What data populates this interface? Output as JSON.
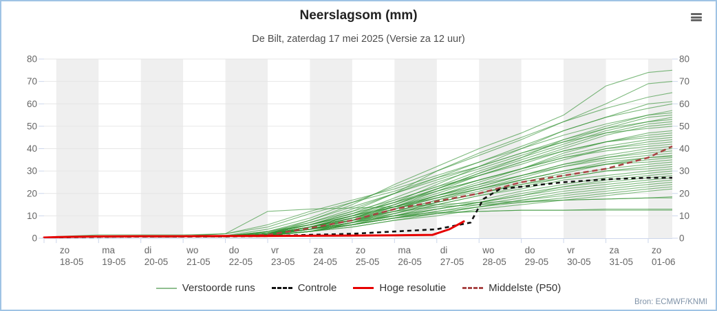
{
  "header": {
    "title": "Neerslagsom (mm)",
    "subtitle": "De Bilt, zaterdag 17 mei 2025 (Versie za 12 uur)"
  },
  "menu": {
    "icon": "hamburger-icon"
  },
  "credit": "Bron: ECMWF/KNMI",
  "colors": {
    "border": "#9fc3e4",
    "band": "#efefef",
    "grid": "#e6e6e6",
    "axis": "#ccd6eb",
    "tick_label": "#666666",
    "title": "#222222",
    "subtitle": "#4d4d4d",
    "credit": "#8093a8",
    "burger": "#666666"
  },
  "chart_data": {
    "type": "line",
    "title": "Neerslagsom (mm)",
    "subtitle": "De Bilt, zaterdag 17 mei 2025 (Versie za 12 uur)",
    "ylabel": "",
    "xlabel": "",
    "ylim": [
      0,
      80
    ],
    "yticks": [
      0,
      10,
      20,
      30,
      40,
      50,
      60,
      70,
      80
    ],
    "grid": "horizontal",
    "day_bands": "alternate gray starting at first labeled day",
    "legend_position": "bottom-center",
    "x_start_day": -0.29,
    "x_end_day": 14.57,
    "x_axis": {
      "categories": [
        {
          "day": "zo",
          "date": "18-05"
        },
        {
          "day": "ma",
          "date": "19-05"
        },
        {
          "day": "di",
          "date": "20-05"
        },
        {
          "day": "wo",
          "date": "21-05"
        },
        {
          "day": "do",
          "date": "22-05"
        },
        {
          "day": "vr",
          "date": "23-05"
        },
        {
          "day": "za",
          "date": "24-05"
        },
        {
          "day": "zo",
          "date": "25-05"
        },
        {
          "day": "ma",
          "date": "26-05"
        },
        {
          "day": "di",
          "date": "27-05"
        },
        {
          "day": "wo",
          "date": "28-05"
        },
        {
          "day": "do",
          "date": "29-05"
        },
        {
          "day": "vr",
          "date": "30-05"
        },
        {
          "day": "za",
          "date": "31-05"
        },
        {
          "day": "zo",
          "date": "01-06"
        }
      ]
    },
    "x_days": [
      -0.29,
      0,
      1,
      2,
      3,
      4,
      5,
      6,
      7,
      8,
      9,
      10,
      11,
      12,
      13,
      14,
      14.57
    ],
    "series": {
      "verstoorde_runs": {
        "label": "Verstoorde runs",
        "color": "#2f8f2f",
        "style": "thin solid, ~45 ensemble members",
        "members": [
          [
            0.3,
            0.5,
            0.8,
            0.8,
            0.8,
            1,
            2,
            8,
            15,
            24,
            32,
            40,
            47,
            55,
            68,
            74,
            75
          ],
          [
            0.3,
            0.5,
            0.8,
            0.8,
            0.8,
            1,
            3,
            6,
            12,
            20,
            30,
            38,
            45,
            52,
            60,
            69,
            70
          ],
          [
            0.3,
            0.5,
            0.8,
            0.8,
            0.9,
            1.2,
            4,
            9,
            16,
            23,
            30,
            37,
            44,
            52,
            58,
            63,
            65
          ],
          [
            0.3,
            0.5,
            0.7,
            0.8,
            0.8,
            0.9,
            1.5,
            5,
            10,
            16,
            24,
            32,
            40,
            48,
            54,
            60,
            61
          ],
          [
            0.3,
            0.5,
            0.7,
            0.8,
            0.8,
            1,
            2,
            7,
            13,
            20,
            27,
            34,
            41,
            48,
            54,
            58,
            60
          ],
          [
            0.3,
            0.4,
            0.6,
            0.7,
            0.7,
            0.8,
            1.2,
            4,
            9,
            15,
            22,
            29,
            36,
            44,
            50,
            55,
            57
          ],
          [
            0.3,
            0.8,
            1.5,
            1.5,
            1.5,
            2,
            6,
            12,
            17,
            22,
            28,
            34,
            40,
            46,
            51,
            55,
            56
          ],
          [
            0.3,
            0.5,
            0.7,
            0.8,
            0.8,
            1,
            2,
            6,
            11,
            18,
            25,
            31,
            37,
            43,
            49,
            54,
            55
          ],
          [
            0.3,
            0.4,
            0.6,
            0.7,
            0.7,
            0.9,
            1.5,
            5,
            10,
            17,
            23,
            30,
            36,
            42,
            48,
            52,
            54
          ],
          [
            0.3,
            0.5,
            0.7,
            0.8,
            0.8,
            1,
            3,
            8,
            14,
            20,
            26,
            32,
            38,
            44,
            49,
            52,
            53
          ],
          [
            0.3,
            0.4,
            0.6,
            0.7,
            0.8,
            1,
            2,
            5,
            9,
            15,
            22,
            29,
            35,
            41,
            47,
            51,
            52
          ],
          [
            0.3,
            0.5,
            0.7,
            0.8,
            0.8,
            0.9,
            1.5,
            4,
            8,
            14,
            21,
            28,
            34,
            40,
            46,
            50,
            51
          ],
          [
            0.3,
            0.5,
            0.8,
            0.9,
            1,
            2,
            5,
            11,
            16,
            21,
            27,
            32,
            38,
            43,
            47,
            49,
            50
          ],
          [
            0.3,
            0.4,
            0.6,
            0.7,
            0.7,
            0.8,
            1.2,
            3,
            7,
            13,
            19,
            25,
            31,
            38,
            43,
            47,
            48
          ],
          [
            0.3,
            0.5,
            0.7,
            0.8,
            0.8,
            1,
            2,
            6,
            11,
            16,
            22,
            28,
            33,
            39,
            43,
            46,
            47
          ],
          [
            0.3,
            0.4,
            0.6,
            0.7,
            0.8,
            1,
            3,
            7,
            12,
            17,
            23,
            28,
            34,
            39,
            43,
            45,
            46
          ],
          [
            0.3,
            0.5,
            0.7,
            0.8,
            0.8,
            0.9,
            2,
            5,
            9,
            14,
            20,
            26,
            31,
            37,
            41,
            44,
            45
          ],
          [
            0.3,
            0.4,
            0.6,
            0.7,
            0.7,
            0.8,
            1.5,
            4,
            8,
            13,
            19,
            24,
            30,
            35,
            40,
            43,
            44
          ],
          [
            0.3,
            0.5,
            0.7,
            0.8,
            0.8,
            1,
            2,
            6,
            10,
            15,
            21,
            26,
            31,
            36,
            40,
            42,
            43
          ],
          [
            0.3,
            0.4,
            0.6,
            0.7,
            0.8,
            1,
            2.5,
            6,
            11,
            16,
            21,
            26,
            31,
            36,
            39,
            41,
            42
          ],
          [
            0.3,
            0.5,
            0.7,
            0.8,
            0.8,
            0.9,
            1.5,
            4,
            8,
            13,
            18,
            23,
            28,
            33,
            37,
            40,
            41
          ],
          [
            0.3,
            0.4,
            0.6,
            0.7,
            0.7,
            0.8,
            1.2,
            3,
            7,
            12,
            17,
            22,
            27,
            32,
            36,
            39,
            40
          ],
          [
            0.3,
            0.5,
            0.7,
            0.8,
            0.8,
            1,
            2,
            5,
            9,
            14,
            19,
            24,
            28,
            33,
            36,
            38,
            39
          ],
          [
            0.3,
            0.4,
            0.6,
            0.7,
            0.8,
            1,
            2,
            5,
            10,
            14,
            19,
            23,
            28,
            32,
            35,
            37,
            38
          ],
          [
            0.3,
            0.5,
            0.7,
            0.8,
            0.8,
            0.9,
            1.5,
            4,
            8,
            12,
            17,
            21,
            26,
            30,
            34,
            36,
            37
          ],
          [
            0.3,
            0.4,
            0.6,
            0.7,
            0.7,
            0.8,
            1.2,
            3,
            6,
            11,
            16,
            20,
            25,
            29,
            33,
            36,
            36.5
          ],
          [
            0.3,
            0.5,
            0.7,
            0.8,
            0.8,
            1,
            2,
            5,
            9,
            13,
            18,
            22,
            26,
            30,
            33,
            35,
            36
          ],
          [
            0.3,
            0.4,
            0.6,
            0.7,
            0.8,
            1,
            2.5,
            6,
            10,
            14,
            18,
            22,
            26,
            30,
            33,
            34,
            35
          ],
          [
            0.3,
            0.5,
            0.7,
            0.8,
            0.8,
            0.9,
            1.5,
            4,
            7,
            11,
            16,
            20,
            24,
            28,
            31,
            33,
            34
          ],
          [
            0.3,
            0.4,
            0.6,
            0.7,
            0.7,
            0.8,
            1.2,
            3,
            6,
            10,
            15,
            19,
            23,
            27,
            30,
            32,
            33
          ],
          [
            0.3,
            0.5,
            0.7,
            0.8,
            0.8,
            1,
            2,
            5,
            8,
            12,
            16,
            20,
            24,
            27,
            30,
            31,
            32
          ],
          [
            0.3,
            0.4,
            0.6,
            0.7,
            0.8,
            1,
            2,
            4,
            8,
            11,
            15,
            19,
            22,
            26,
            28,
            30,
            31
          ],
          [
            0.3,
            0.5,
            0.7,
            0.8,
            0.8,
            0.9,
            1.5,
            4,
            7,
            10,
            14,
            17,
            21,
            24,
            27,
            29,
            30
          ],
          [
            0.3,
            0.4,
            0.6,
            0.7,
            0.7,
            0.8,
            1.2,
            3,
            6,
            9,
            13,
            16,
            20,
            23,
            26,
            28,
            29
          ],
          [
            0.3,
            0.5,
            0.7,
            0.8,
            0.8,
            1,
            2,
            4,
            7,
            10,
            13,
            16,
            19,
            23,
            25,
            27,
            28
          ],
          [
            0.3,
            0.4,
            0.6,
            0.7,
            0.8,
            1,
            2,
            4,
            7,
            10,
            13,
            16,
            19,
            22,
            24,
            26,
            27
          ],
          [
            0.3,
            0.5,
            0.7,
            0.8,
            0.8,
            0.9,
            1.5,
            3,
            6,
            9,
            12,
            15,
            18,
            21,
            23,
            25,
            26
          ],
          [
            0.3,
            0.4,
            0.6,
            0.7,
            0.7,
            0.8,
            1.2,
            3,
            5,
            8,
            11,
            14,
            17,
            20,
            22,
            24,
            25
          ],
          [
            0.3,
            0.5,
            0.7,
            0.8,
            0.8,
            1,
            2,
            4,
            6,
            9,
            12,
            14,
            17,
            19,
            21,
            23,
            24
          ],
          [
            0.3,
            0.4,
            0.6,
            0.7,
            0.8,
            1,
            2,
            4,
            6,
            9,
            11,
            14,
            16,
            18,
            20,
            22,
            23
          ],
          [
            0.3,
            0.5,
            0.7,
            0.8,
            0.8,
            0.9,
            1.5,
            3,
            5,
            8,
            10,
            13,
            15,
            17,
            19,
            21,
            22
          ],
          [
            0.3,
            0.5,
            0.8,
            0.9,
            1,
            2,
            12,
            13,
            13.5,
            14,
            15,
            16,
            16.5,
            17,
            17.5,
            18,
            18.5
          ],
          [
            0.3,
            0.4,
            0.6,
            0.7,
            0.7,
            0.8,
            1.5,
            5,
            9,
            12,
            14,
            15,
            16,
            17,
            17.5,
            18,
            18
          ],
          [
            0.3,
            0.4,
            0.6,
            0.7,
            0.7,
            0.8,
            1.2,
            3,
            6,
            9,
            11,
            12,
            12.5,
            12.5,
            13,
            13,
            13
          ],
          [
            0.3,
            0.5,
            0.7,
            0.8,
            0.8,
            0.9,
            2,
            5,
            8,
            10,
            11.5,
            12,
            12.5,
            12.5,
            12.5,
            12.5,
            12.5
          ]
        ]
      },
      "controle": {
        "label": "Controle",
        "color": "#111111",
        "style": "black dashed",
        "x": [
          -0.29,
          0,
          1,
          2,
          3,
          4,
          5,
          6,
          7,
          8,
          9,
          9.8,
          10.1,
          10.5,
          11,
          12,
          13,
          14,
          14.57
        ],
        "values": [
          0.3,
          0.4,
          0.6,
          0.7,
          0.7,
          0.8,
          1,
          1.5,
          2,
          3,
          4,
          7,
          17.5,
          22,
          23,
          25,
          26.3,
          27,
          27
        ]
      },
      "hoge_resolutie": {
        "label": "Hoge resolutie",
        "color": "#e60000",
        "style": "red solid, ends di 27-05 midday",
        "x": [
          -0.29,
          0,
          1,
          2,
          3,
          4,
          5,
          6,
          7,
          8,
          8.9,
          9.3,
          9.64
        ],
        "values": [
          0.3,
          0.5,
          0.8,
          0.9,
          0.9,
          1,
          1,
          1.1,
          1.2,
          1.3,
          1.5,
          4,
          7.5
        ]
      },
      "middelste_p50": {
        "label": "Middelste (P50)",
        "color": "#a84444",
        "style": "dark red dashed",
        "x": [
          -0.29,
          0,
          1,
          2,
          3,
          4,
          5,
          6,
          7,
          8,
          9,
          10,
          11,
          12,
          13,
          14,
          14.57
        ],
        "values": [
          0.3,
          0.5,
          0.6,
          0.7,
          0.7,
          0.8,
          1.5,
          4.5,
          8,
          13,
          16.5,
          20,
          25,
          28,
          31,
          36,
          41
        ]
      }
    }
  }
}
